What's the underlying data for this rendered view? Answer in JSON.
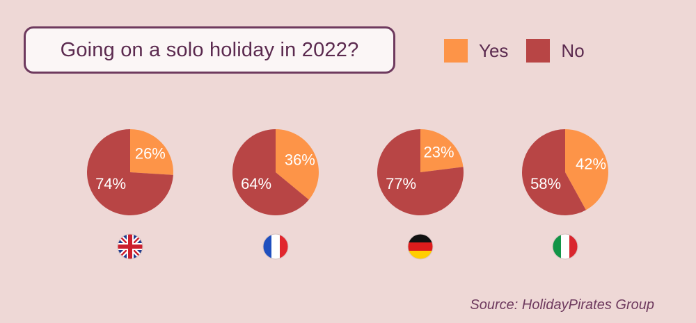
{
  "title": "Going on a solo holiday in 2022?",
  "legend": [
    {
      "name": "Yes",
      "color": "#fd9448"
    },
    {
      "name": "No",
      "color": "#b84545"
    }
  ],
  "source": "Source: HolidayPirates Group",
  "chart_data": {
    "type": "pie",
    "title": "Going on a solo holiday in 2022?",
    "series_names": [
      "Yes",
      "No"
    ],
    "colors": [
      "#fd9448",
      "#b84545"
    ],
    "legend_position": "top-right",
    "pies": [
      {
        "country": "United Kingdom",
        "flag": "uk-flag-icon",
        "values": [
          26,
          74
        ],
        "labels": [
          "26%",
          "74%"
        ]
      },
      {
        "country": "France",
        "flag": "france-flag-icon",
        "values": [
          36,
          64
        ],
        "labels": [
          "36%",
          "64%"
        ]
      },
      {
        "country": "Germany",
        "flag": "germany-flag-icon",
        "values": [
          23,
          77
        ],
        "labels": [
          "23%",
          "77%"
        ]
      },
      {
        "country": "Italy",
        "flag": "italy-flag-icon",
        "values": [
          42,
          58
        ],
        "labels": [
          "42%",
          "58%"
        ]
      }
    ]
  }
}
